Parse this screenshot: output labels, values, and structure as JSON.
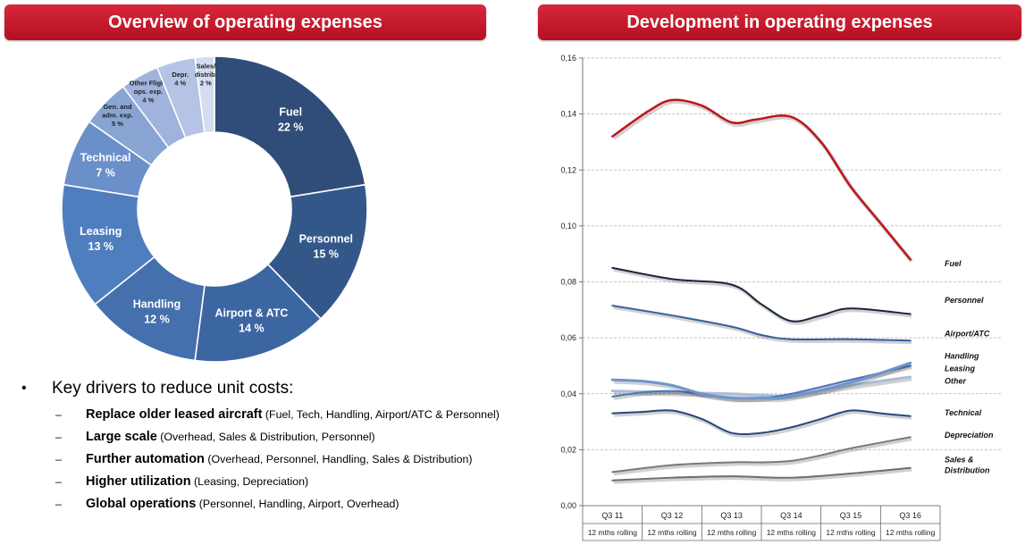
{
  "headers": {
    "left": "Overview of operating expenses",
    "right": "Development in operating expenses"
  },
  "drivers": {
    "bullet": "•",
    "dash": "–",
    "title": "Key drivers to reduce unit costs:",
    "items": [
      {
        "bold": "Replace older leased aircraft",
        "detail": " (Fuel, Tech, Handling, Airport/ATC & Personnel)"
      },
      {
        "bold": "Large scale",
        "detail": " (Overhead, Sales & Distribution, Personnel)"
      },
      {
        "bold": "Further automation",
        "detail": " (Overhead, Personnel, Handling, Sales & Distribution)"
      },
      {
        "bold": "Higher utilization",
        "detail": " (Leasing, Depreciation)"
      },
      {
        "bold": "Global operations",
        "detail": " (Personnel, Handling, Airport, Overhead)"
      }
    ]
  },
  "chart_data": [
    {
      "type": "pie",
      "variant": "donut",
      "slices": [
        {
          "label": [
            "Fuel"
          ],
          "pct": "22 %",
          "value": 22,
          "color": "#2f4d78"
        },
        {
          "label": [
            "Personnel"
          ],
          "pct": "15 %",
          "value": 15,
          "color": "#34578a"
        },
        {
          "label": [
            "Airport & ATC"
          ],
          "pct": "14 %",
          "value": 14,
          "color": "#3c66a2"
        },
        {
          "label": [
            "Handling"
          ],
          "pct": "12 %",
          "value": 12,
          "color": "#466fae"
        },
        {
          "label": [
            "Leasing"
          ],
          "pct": "13 %",
          "value": 13,
          "color": "#4f7ebf"
        },
        {
          "label": [
            "Technical"
          ],
          "pct": "7 %",
          "value": 7,
          "color": "#6a8fc9"
        },
        {
          "label": [
            "Gen. and",
            "adm. exp."
          ],
          "pct": "5 %",
          "value": 5,
          "color": "#88a4d3"
        },
        {
          "label": [
            "Other Flight",
            "ops. exp."
          ],
          "pct": "4 %",
          "value": 4,
          "color": "#9fb3dc"
        },
        {
          "label": [
            "Depr."
          ],
          "pct": "4 %",
          "value": 4,
          "color": "#b5c4e4"
        },
        {
          "label": [
            "Sales/",
            "distrib."
          ],
          "pct": "2 %",
          "value": 2,
          "color": "#d3ddef"
        }
      ]
    },
    {
      "type": "line",
      "categories": [
        "Q3 11",
        "Q3 12",
        "Q3 13",
        "Q3 14",
        "Q3 15",
        "Q3 16"
      ],
      "category_sublabel": "12 mths rolling",
      "ylim": [
        0,
        0.16
      ],
      "yticks": [
        "0,00",
        "0,02",
        "0,04",
        "0,06",
        "0,08",
        "0,10",
        "0,12",
        "0,14",
        "0,16"
      ],
      "grid": true,
      "series": [
        {
          "name": "Fuel",
          "color": "#c0141c",
          "width": 2.5,
          "x": [
            1,
            1.6,
            2,
            2.5,
            3,
            3.4,
            4,
            4.5,
            5,
            5.5,
            6
          ],
          "values": [
            0.132,
            0.141,
            0.145,
            0.143,
            0.137,
            0.138,
            0.139,
            0.13,
            0.114,
            0.101,
            0.088
          ]
        },
        {
          "name": "Personnel",
          "color": "#17253d",
          "width": 2,
          "x": [
            1,
            2,
            3,
            3.5,
            4,
            4.5,
            5,
            6
          ],
          "values": [
            0.085,
            0.081,
            0.079,
            0.072,
            0.066,
            0.068,
            0.0705,
            0.0685
          ]
        },
        {
          "name": "Airport/ATC",
          "color": "#335d9c",
          "width": 2,
          "x": [
            1,
            2,
            3,
            3.5,
            4,
            5,
            6
          ],
          "values": [
            0.0715,
            0.068,
            0.064,
            0.061,
            0.0595,
            0.0595,
            0.059
          ]
        },
        {
          "name": "Handling",
          "color": "#6f95cc",
          "width": 3,
          "x": [
            1,
            1.5,
            2,
            2.5,
            3,
            3.5,
            4,
            5,
            6
          ],
          "values": [
            0.045,
            0.0445,
            0.043,
            0.04,
            0.0385,
            0.0385,
            0.039,
            0.044,
            0.051
          ]
        },
        {
          "name": "Leasing",
          "color": "#4a77b9",
          "width": 2,
          "x": [
            1,
            1.5,
            2,
            2.5,
            3,
            3.5,
            4,
            5,
            6
          ],
          "values": [
            0.039,
            0.0405,
            0.041,
            0.04,
            0.0385,
            0.0385,
            0.04,
            0.045,
            0.05
          ]
        },
        {
          "name": "Other",
          "color": "#aebcd6",
          "width": 3,
          "x": [
            1,
            2,
            3,
            3.5,
            4,
            5,
            6
          ],
          "values": [
            0.041,
            0.0405,
            0.04,
            0.0395,
            0.0395,
            0.043,
            0.046
          ]
        },
        {
          "name": "Technical",
          "color": "#26487a",
          "width": 2,
          "x": [
            1,
            1.5,
            2,
            2.5,
            3,
            3.5,
            4,
            4.5,
            5,
            5.5,
            6
          ],
          "values": [
            0.033,
            0.0335,
            0.034,
            0.031,
            0.026,
            0.026,
            0.028,
            0.031,
            0.034,
            0.033,
            0.032
          ]
        },
        {
          "name": "Depreciation",
          "color": "#7a7a7a",
          "width": 2,
          "x": [
            1,
            2,
            3,
            3.5,
            4,
            4.5,
            5,
            6
          ],
          "values": [
            0.012,
            0.0145,
            0.0155,
            0.0155,
            0.016,
            0.018,
            0.0205,
            0.0245
          ]
        },
        {
          "name": "Sales & Distribution",
          "color": "#6e6e6e",
          "width": 2,
          "x": [
            1,
            2,
            3,
            4,
            5,
            6
          ],
          "values": [
            0.009,
            0.01,
            0.0105,
            0.01,
            0.0115,
            0.0135
          ]
        }
      ],
      "legend": [
        {
          "lines": [
            "Fuel"
          ],
          "value": 0.0865
        },
        {
          "lines": [
            "Personnel"
          ],
          "value": 0.0735
        },
        {
          "lines": [
            "Airport/ATC"
          ],
          "value": 0.0615
        },
        {
          "lines": [
            "Handling"
          ],
          "value": 0.0535
        },
        {
          "lines": [
            "Leasing"
          ],
          "value": 0.049
        },
        {
          "lines": [
            "Other"
          ],
          "value": 0.0445
        },
        {
          "lines": [
            "Technical"
          ],
          "value": 0.0332
        },
        {
          "lines": [
            "Depreciation"
          ],
          "value": 0.0252
        },
        {
          "lines": [
            "Sales &",
            "Distribution"
          ],
          "value": 0.0145
        }
      ]
    }
  ]
}
